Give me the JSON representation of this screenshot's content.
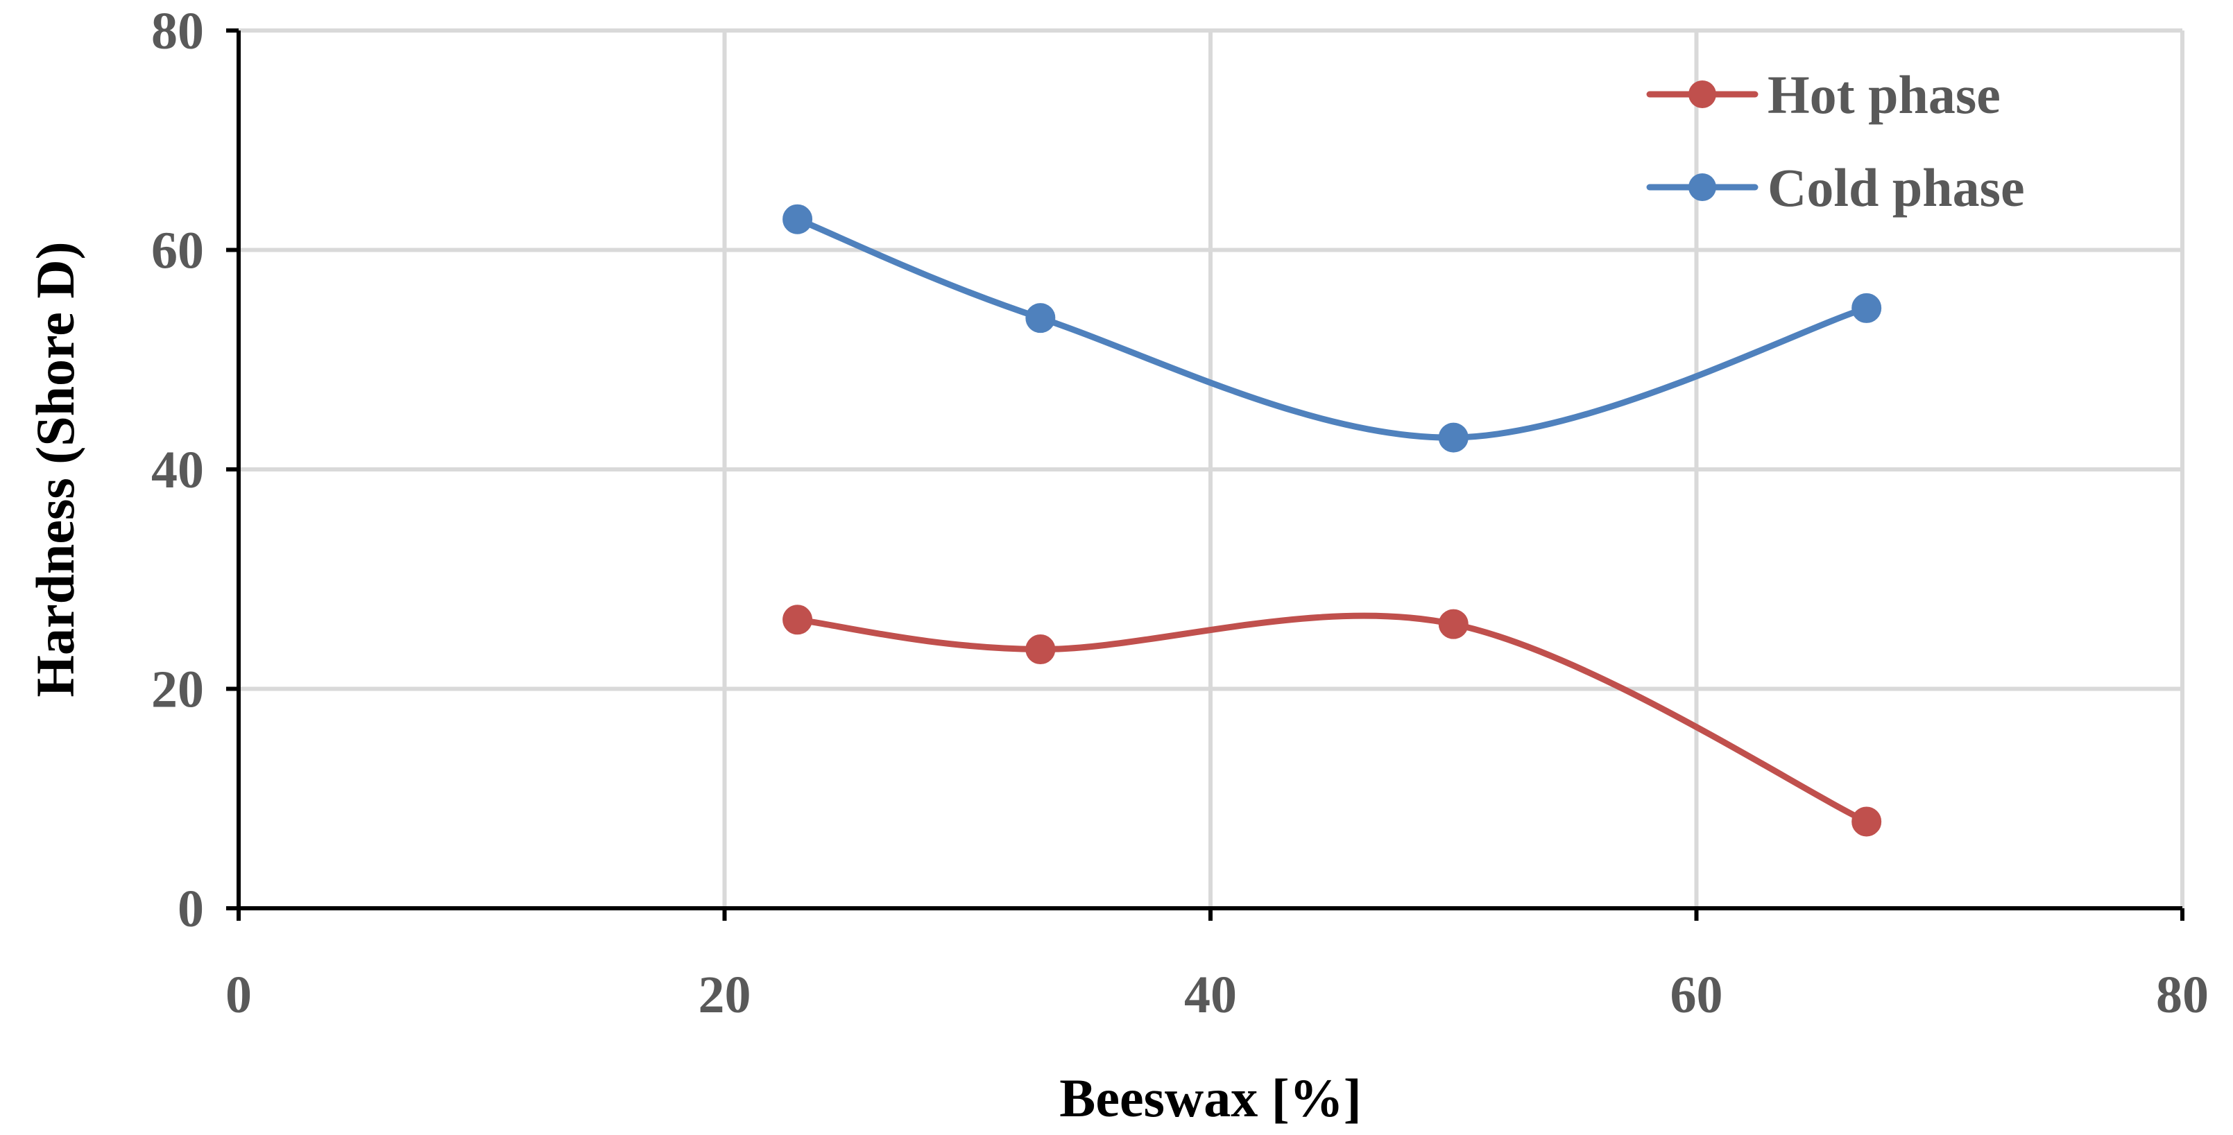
{
  "chart_data": {
    "type": "line",
    "title": "",
    "xlabel": "Beeswax [%]",
    "ylabel": "Hardness (Shore D)",
    "xlim": [
      0,
      80
    ],
    "ylim": [
      0,
      80
    ],
    "x_ticks": [
      "0",
      "20",
      "40",
      "60",
      "80"
    ],
    "y_ticks": [
      "0",
      "20",
      "40",
      "60",
      "80"
    ],
    "grid": true,
    "smooth": true,
    "legend_position": "top-right",
    "series": [
      {
        "name": "Hot phase",
        "color": "#c0504d",
        "x": [
          23,
          33,
          50,
          67
        ],
        "y": [
          26.3,
          23.6,
          25.9,
          7.9
        ]
      },
      {
        "name": "Cold phase",
        "color": "#4f81bd",
        "x": [
          23,
          33,
          50,
          67
        ],
        "y": [
          62.8,
          53.8,
          42.9,
          54.7
        ]
      }
    ]
  }
}
